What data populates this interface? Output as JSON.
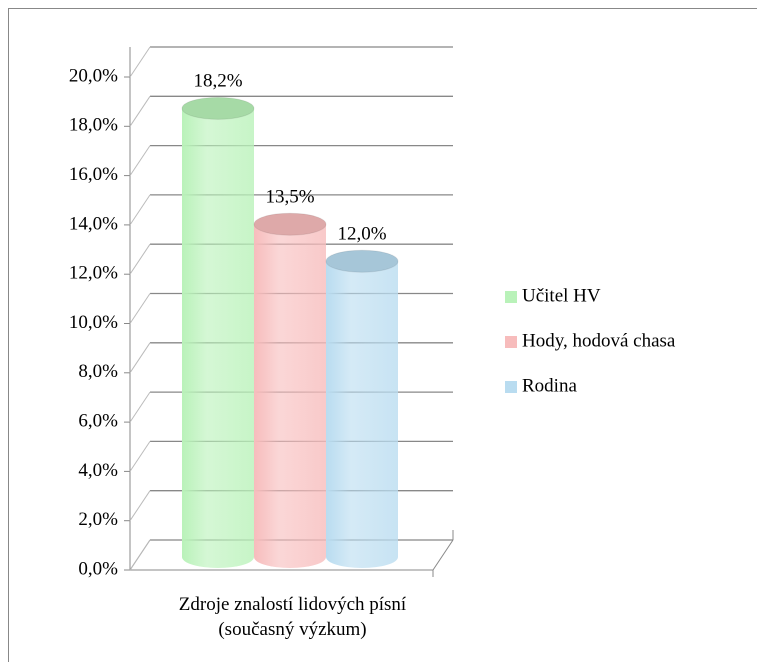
{
  "chart_data": {
    "type": "cylinder_bar",
    "categories": [
      "Zdroje znalostí lidových písní (současný výzkum)"
    ],
    "series": [
      {
        "name": "Učitel HV",
        "color": "#b9f2b9",
        "values": [
          18.2
        ],
        "value_labels": [
          "18,2%"
        ]
      },
      {
        "name": "Hody, hodová chasa",
        "color": "#f7bcbc",
        "values": [
          13.5
        ],
        "value_labels": [
          "13,5%"
        ]
      },
      {
        "name": "Rodina",
        "color": "#b9dcf0",
        "values": [
          12.0
        ],
        "value_labels": [
          "12,0%"
        ]
      }
    ],
    "ylim": [
      0,
      20
    ],
    "yticks": [
      {
        "value": 0,
        "label": "0,0%"
      },
      {
        "value": 2,
        "label": "2,0%"
      },
      {
        "value": 4,
        "label": "4,0%"
      },
      {
        "value": 6,
        "label": "6,0%"
      },
      {
        "value": 8,
        "label": "8,0%"
      },
      {
        "value": 10,
        "label": "10,0%"
      },
      {
        "value": 12,
        "label": "12,0%"
      },
      {
        "value": 14,
        "label": "14,0%"
      },
      {
        "value": 16,
        "label": "16,0%"
      },
      {
        "value": 18,
        "label": "18,0%"
      },
      {
        "value": 20,
        "label": "20,0%"
      }
    ],
    "grid": true,
    "legend": "right"
  }
}
